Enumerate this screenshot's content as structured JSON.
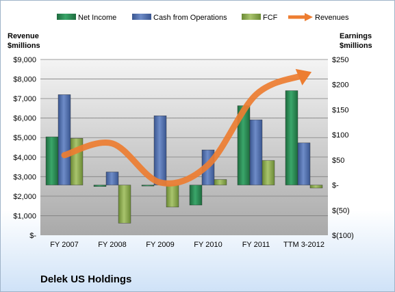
{
  "chart_data": {
    "type": "bar",
    "company": "Delek US Holdings",
    "categories": [
      "FY 2007",
      "FY 2008",
      "FY 2009",
      "FY 2010",
      "FY 2011",
      "TTM 3-2012"
    ],
    "left_axis": {
      "title_line1": "Revenue",
      "title_line2": "$millions",
      "range": [
        0,
        9000
      ],
      "ticks": [
        0,
        1000,
        2000,
        3000,
        4000,
        5000,
        6000,
        7000,
        8000,
        9000
      ],
      "tick_labels": [
        "$-",
        "$1,000",
        "$2,000",
        "$3,000",
        "$4,000",
        "$5,000",
        "$6,000",
        "$7,000",
        "$8,000",
        "$9,000"
      ]
    },
    "right_axis": {
      "title_line1": "Earnings",
      "title_line2": "$millions",
      "range": [
        -100,
        250
      ],
      "ticks": [
        -100,
        -50,
        0,
        50,
        100,
        150,
        200,
        250
      ],
      "tick_labels": [
        "$(100)",
        "$(50)",
        "$-",
        "$50",
        "$100",
        "$150",
        "$200",
        "$250"
      ]
    },
    "series": [
      {
        "name": "Net Income",
        "type": "bar",
        "axis": "right",
        "color": "#2e8b57",
        "values": [
          96,
          -3,
          0,
          -40,
          158,
          188
        ]
      },
      {
        "name": "Cash from Operations",
        "type": "bar",
        "axis": "right",
        "color": "#4f6fae",
        "values": [
          180,
          26,
          138,
          70,
          130,
          84
        ]
      },
      {
        "name": "FCF",
        "type": "bar",
        "axis": "right",
        "color": "#8aa84f",
        "values": [
          93,
          -76,
          -44,
          11,
          49,
          -6
        ]
      },
      {
        "name": "Revenues",
        "type": "line",
        "axis": "left",
        "color": "#ed7d31",
        "values": [
          4100,
          4700,
          2700,
          3600,
          7200,
          8200
        ]
      }
    ],
    "legend_position": "top",
    "grid": true
  }
}
